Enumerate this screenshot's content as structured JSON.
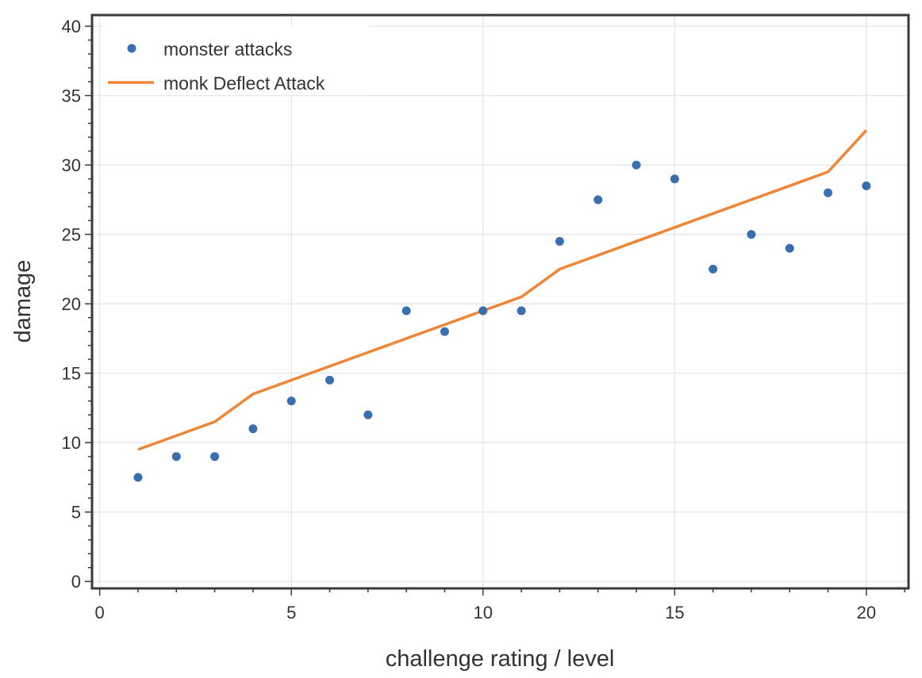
{
  "chart_data": {
    "type": "scatter",
    "xlabel": "challenge rating / level",
    "ylabel": "damage",
    "xlim": [
      -0.2,
      21.1
    ],
    "ylim": [
      -0.5,
      40.8
    ],
    "x_ticks": [
      0,
      5,
      10,
      15,
      20
    ],
    "y_ticks": [
      0,
      5,
      10,
      15,
      20,
      25,
      30,
      35,
      40
    ],
    "x_minor_step": 1,
    "y_minor_step": 1,
    "grid": true,
    "legend_position": "top-left",
    "colors": {
      "points": "#3a6faf",
      "line": "#ef8636",
      "grid": "#e8e8e8",
      "frame": "#3a3a3a",
      "text": "#333333"
    },
    "series": [
      {
        "name": "monster attacks",
        "kind": "scatter",
        "x": [
          1,
          2,
          3,
          4,
          5,
          6,
          7,
          8,
          9,
          10,
          11,
          12,
          13,
          14,
          15,
          16,
          17,
          18,
          19,
          20
        ],
        "y": [
          7.5,
          9,
          9,
          11,
          13,
          14.5,
          12,
          19.5,
          18,
          19.5,
          19.5,
          24.5,
          27.5,
          30,
          29,
          22.5,
          25,
          24,
          28,
          28.5
        ]
      },
      {
        "name": "monk Deflect Attack",
        "kind": "line",
        "x": [
          1,
          2,
          3,
          4,
          5,
          6,
          7,
          8,
          9,
          10,
          11,
          12,
          13,
          14,
          15,
          16,
          17,
          18,
          19,
          20
        ],
        "y": [
          9.5,
          10.5,
          11.5,
          13.5,
          14.5,
          15.5,
          16.5,
          17.5,
          18.5,
          19.5,
          20.5,
          22.5,
          23.5,
          24.5,
          25.5,
          26.5,
          27.5,
          28.5,
          29.5,
          32.5
        ]
      }
    ]
  }
}
